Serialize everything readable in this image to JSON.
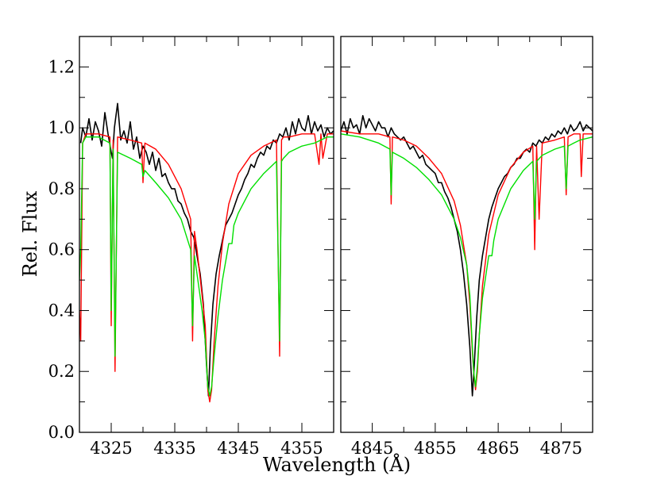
{
  "chart_data": [
    {
      "type": "line",
      "panel": "left",
      "xlim": [
        4320,
        4360
      ],
      "ylim": [
        0.0,
        1.3
      ],
      "xticks": [
        4325,
        4335,
        4345,
        4355
      ],
      "xtick_labels": [
        "4325",
        "4335",
        "4345",
        "4355"
      ],
      "yticks": [
        0.0,
        0.2,
        0.4,
        0.6,
        0.8,
        1.0,
        1.2
      ],
      "ytick_labels": [
        "0.0",
        "0.2",
        "0.4",
        "0.6",
        "0.8",
        "1.0",
        "1.2"
      ],
      "ylabel": "Rel. Flux",
      "line_center": 4340.5,
      "series": [
        {
          "color": "#000000",
          "x": [
            4320.2,
            4320.5,
            4321,
            4321.5,
            4322,
            4322.5,
            4323,
            4323.5,
            4324,
            4324.5,
            4325,
            4325.2,
            4325.5,
            4326,
            4326.5,
            4327,
            4327.5,
            4328,
            4328.5,
            4329,
            4329.5,
            4330,
            4330.5,
            4331,
            4331.5,
            4332,
            4332.5,
            4333,
            4333.5,
            4334,
            4334.5,
            4335,
            4335.5,
            4336,
            4336.5,
            4337,
            4337.5,
            4338,
            4338.5,
            4339,
            4339.5,
            4340,
            4340.3,
            4340.6,
            4341,
            4341.5,
            4342,
            4342.5,
            4343,
            4343.5,
            4344,
            4344.5,
            4345,
            4345.5,
            4346,
            4346.5,
            4347,
            4347.5,
            4348,
            4348.5,
            4349,
            4349.5,
            4350,
            4350.5,
            4351,
            4351.5,
            4352,
            4352.5,
            4353,
            4353.5,
            4354,
            4354.5,
            4355,
            4355.5,
            4356,
            4356.5,
            4357,
            4357.5,
            4358,
            4358.5,
            4359,
            4359.5,
            4360
          ],
          "y": [
            0.95,
            1.0,
            0.97,
            1.03,
            0.96,
            1.02,
            0.99,
            0.94,
            1.05,
            0.98,
            0.92,
            0.9,
            1.0,
            1.08,
            0.96,
            0.99,
            0.95,
            1.02,
            0.93,
            0.97,
            0.9,
            0.94,
            0.92,
            0.88,
            0.92,
            0.86,
            0.9,
            0.84,
            0.85,
            0.82,
            0.8,
            0.8,
            0.76,
            0.75,
            0.72,
            0.7,
            0.66,
            0.64,
            0.58,
            0.52,
            0.42,
            0.22,
            0.12,
            0.28,
            0.42,
            0.52,
            0.58,
            0.63,
            0.68,
            0.7,
            0.72,
            0.75,
            0.78,
            0.8,
            0.83,
            0.85,
            0.88,
            0.87,
            0.9,
            0.92,
            0.91,
            0.94,
            0.93,
            0.96,
            0.95,
            0.98,
            0.97,
            1.0,
            0.96,
            1.02,
            0.98,
            1.03,
            1.0,
            0.99,
            1.04,
            0.98,
            1.02,
            0.99,
            1.01,
            0.97,
            1.0,
            0.98,
            0.99
          ]
        },
        {
          "color": "#ff0000",
          "x": [
            4320,
            4320.2,
            4320.5,
            4321,
            4323,
            4324.8,
            4325,
            4325.3,
            4325.6,
            4326,
            4328,
            4329.8,
            4330,
            4330.3,
            4332,
            4334,
            4336,
            4337.5,
            4337.8,
            4338.1,
            4338.5,
            4339.3,
            4339.8,
            4340.2,
            4340.5,
            4340.8,
            4341.2,
            4341.8,
            4342.5,
            4343.5,
            4345,
            4347,
            4349,
            4351,
            4351.5,
            4351.8,
            4352.1,
            4353,
            4355,
            4357,
            4357.7,
            4358,
            4358.3,
            4359,
            4360
          ],
          "y": [
            0.4,
            0.3,
            0.95,
            0.98,
            0.98,
            0.97,
            0.35,
            0.96,
            0.2,
            0.97,
            0.96,
            0.95,
            0.82,
            0.95,
            0.93,
            0.88,
            0.8,
            0.7,
            0.3,
            0.66,
            0.6,
            0.45,
            0.35,
            0.14,
            0.1,
            0.14,
            0.3,
            0.48,
            0.62,
            0.75,
            0.85,
            0.91,
            0.94,
            0.96,
            0.25,
            0.96,
            0.97,
            0.97,
            0.98,
            0.98,
            0.88,
            0.98,
            0.9,
            0.98,
            0.98
          ]
        },
        {
          "color": "#00e000",
          "x": [
            4320,
            4320.2,
            4320.5,
            4321,
            4323,
            4324.8,
            4325,
            4325.3,
            4325.6,
            4326,
            4328,
            4329.8,
            4330,
            4330.3,
            4332,
            4334,
            4336,
            4337.5,
            4337.8,
            4338.1,
            4338.5,
            4339.3,
            4339.8,
            4340.2,
            4340.5,
            4340.8,
            4341.2,
            4341.8,
            4342.5,
            4343.5,
            4344,
            4344.3,
            4345,
            4347,
            4349,
            4351,
            4351.5,
            4351.8,
            4352.1,
            4353,
            4355,
            4357,
            4358,
            4359,
            4360
          ],
          "y": [
            0.5,
            0.6,
            0.95,
            0.97,
            0.97,
            0.95,
            0.4,
            0.93,
            0.25,
            0.92,
            0.9,
            0.88,
            0.84,
            0.86,
            0.82,
            0.77,
            0.7,
            0.6,
            0.35,
            0.58,
            0.52,
            0.4,
            0.3,
            0.15,
            0.12,
            0.15,
            0.25,
            0.38,
            0.5,
            0.62,
            0.62,
            0.68,
            0.72,
            0.8,
            0.85,
            0.89,
            0.3,
            0.89,
            0.9,
            0.92,
            0.94,
            0.95,
            0.96,
            0.97,
            0.97
          ]
        }
      ]
    },
    {
      "type": "line",
      "panel": "right",
      "xlim": [
        4840,
        4880
      ],
      "ylim": [
        0.0,
        1.3
      ],
      "xticks": [
        4845,
        4855,
        4865,
        4875
      ],
      "xtick_labels": [
        "4845",
        "4855",
        "4865",
        "4875"
      ],
      "yticks": [
        0.0,
        0.2,
        0.4,
        0.6,
        0.8,
        1.0,
        1.2
      ],
      "xlabel": "Wavelength (Å)",
      "line_center": 4861.3,
      "series": [
        {
          "color": "#000000",
          "x": [
            4840,
            4840.5,
            4841,
            4841.5,
            4842,
            4842.5,
            4843,
            4843.5,
            4844,
            4844.5,
            4845,
            4845.5,
            4846,
            4846.5,
            4847,
            4847.5,
            4848,
            4848.5,
            4849,
            4849.5,
            4850,
            4850.5,
            4851,
            4851.5,
            4852,
            4852.5,
            4853,
            4853.5,
            4854,
            4854.5,
            4855,
            4855.5,
            4856,
            4856.5,
            4857,
            4857.5,
            4858,
            4858.5,
            4859,
            4859.5,
            4860,
            4860.5,
            4860.9,
            4861.2,
            4861.6,
            4862,
            4862.5,
            4863,
            4863.5,
            4864,
            4864.5,
            4865,
            4865.5,
            4866,
            4866.5,
            4867,
            4867.5,
            4868,
            4868.5,
            4869,
            4869.5,
            4870,
            4870.5,
            4871,
            4871.5,
            4872,
            4872.5,
            4873,
            4873.5,
            4874,
            4874.5,
            4875,
            4875.5,
            4876,
            4876.5,
            4877,
            4877.5,
            4878,
            4878.5,
            4879,
            4879.5,
            4880
          ],
          "y": [
            0.99,
            1.02,
            0.98,
            1.03,
            1.0,
            1.01,
            0.98,
            1.04,
            1.0,
            1.03,
            1.01,
            0.99,
            1.02,
            1.0,
            1.0,
            0.97,
            1.0,
            0.98,
            0.97,
            0.96,
            0.97,
            0.95,
            0.93,
            0.94,
            0.92,
            0.9,
            0.91,
            0.88,
            0.87,
            0.86,
            0.85,
            0.82,
            0.82,
            0.79,
            0.77,
            0.74,
            0.7,
            0.66,
            0.6,
            0.52,
            0.42,
            0.28,
            0.12,
            0.22,
            0.38,
            0.5,
            0.58,
            0.64,
            0.7,
            0.74,
            0.77,
            0.8,
            0.82,
            0.84,
            0.85,
            0.87,
            0.88,
            0.9,
            0.9,
            0.92,
            0.93,
            0.92,
            0.95,
            0.94,
            0.96,
            0.95,
            0.97,
            0.96,
            0.98,
            0.97,
            0.99,
            0.98,
            1.0,
            0.98,
            1.01,
            0.99,
            1.0,
            1.02,
            0.99,
            1.01,
            1.0,
            0.99
          ]
        },
        {
          "color": "#ff0000",
          "x": [
            4840,
            4843,
            4846,
            4847.8,
            4848,
            4848.2,
            4850,
            4852,
            4854,
            4856,
            4858,
            4859,
            4860,
            4860.5,
            4860.8,
            4861.1,
            4861.4,
            4861.7,
            4862,
            4862.5,
            4863.5,
            4865,
            4867,
            4869,
            4870.5,
            4870.8,
            4871.1,
            4871.5,
            4872,
            4874,
            4875.5,
            4875.8,
            4876.1,
            4877,
            4878,
            4878.2,
            4878.5,
            4880
          ],
          "y": [
            0.99,
            0.98,
            0.98,
            0.97,
            0.75,
            0.97,
            0.96,
            0.94,
            0.9,
            0.85,
            0.76,
            0.68,
            0.55,
            0.42,
            0.3,
            0.2,
            0.14,
            0.2,
            0.32,
            0.48,
            0.65,
            0.78,
            0.87,
            0.92,
            0.94,
            0.6,
            0.94,
            0.7,
            0.95,
            0.96,
            0.97,
            0.78,
            0.97,
            0.98,
            0.98,
            0.84,
            0.98,
            0.98
          ]
        },
        {
          "color": "#00e000",
          "x": [
            4840,
            4843,
            4846,
            4847.8,
            4848,
            4848.2,
            4850,
            4852,
            4854,
            4856,
            4858,
            4859,
            4860,
            4860.5,
            4860.8,
            4861.1,
            4861.4,
            4861.7,
            4862,
            4862.5,
            4863.5,
            4864,
            4864.3,
            4865,
            4867,
            4869,
            4870.5,
            4870.8,
            4871.1,
            4872,
            4874,
            4875.5,
            4875.8,
            4876.1,
            4877,
            4878,
            4880
          ],
          "y": [
            0.98,
            0.97,
            0.95,
            0.93,
            0.78,
            0.92,
            0.9,
            0.87,
            0.83,
            0.78,
            0.7,
            0.64,
            0.55,
            0.45,
            0.32,
            0.2,
            0.15,
            0.22,
            0.32,
            0.44,
            0.58,
            0.58,
            0.63,
            0.7,
            0.8,
            0.86,
            0.89,
            0.7,
            0.89,
            0.91,
            0.93,
            0.94,
            0.8,
            0.94,
            0.95,
            0.96,
            0.97
          ]
        }
      ]
    }
  ]
}
